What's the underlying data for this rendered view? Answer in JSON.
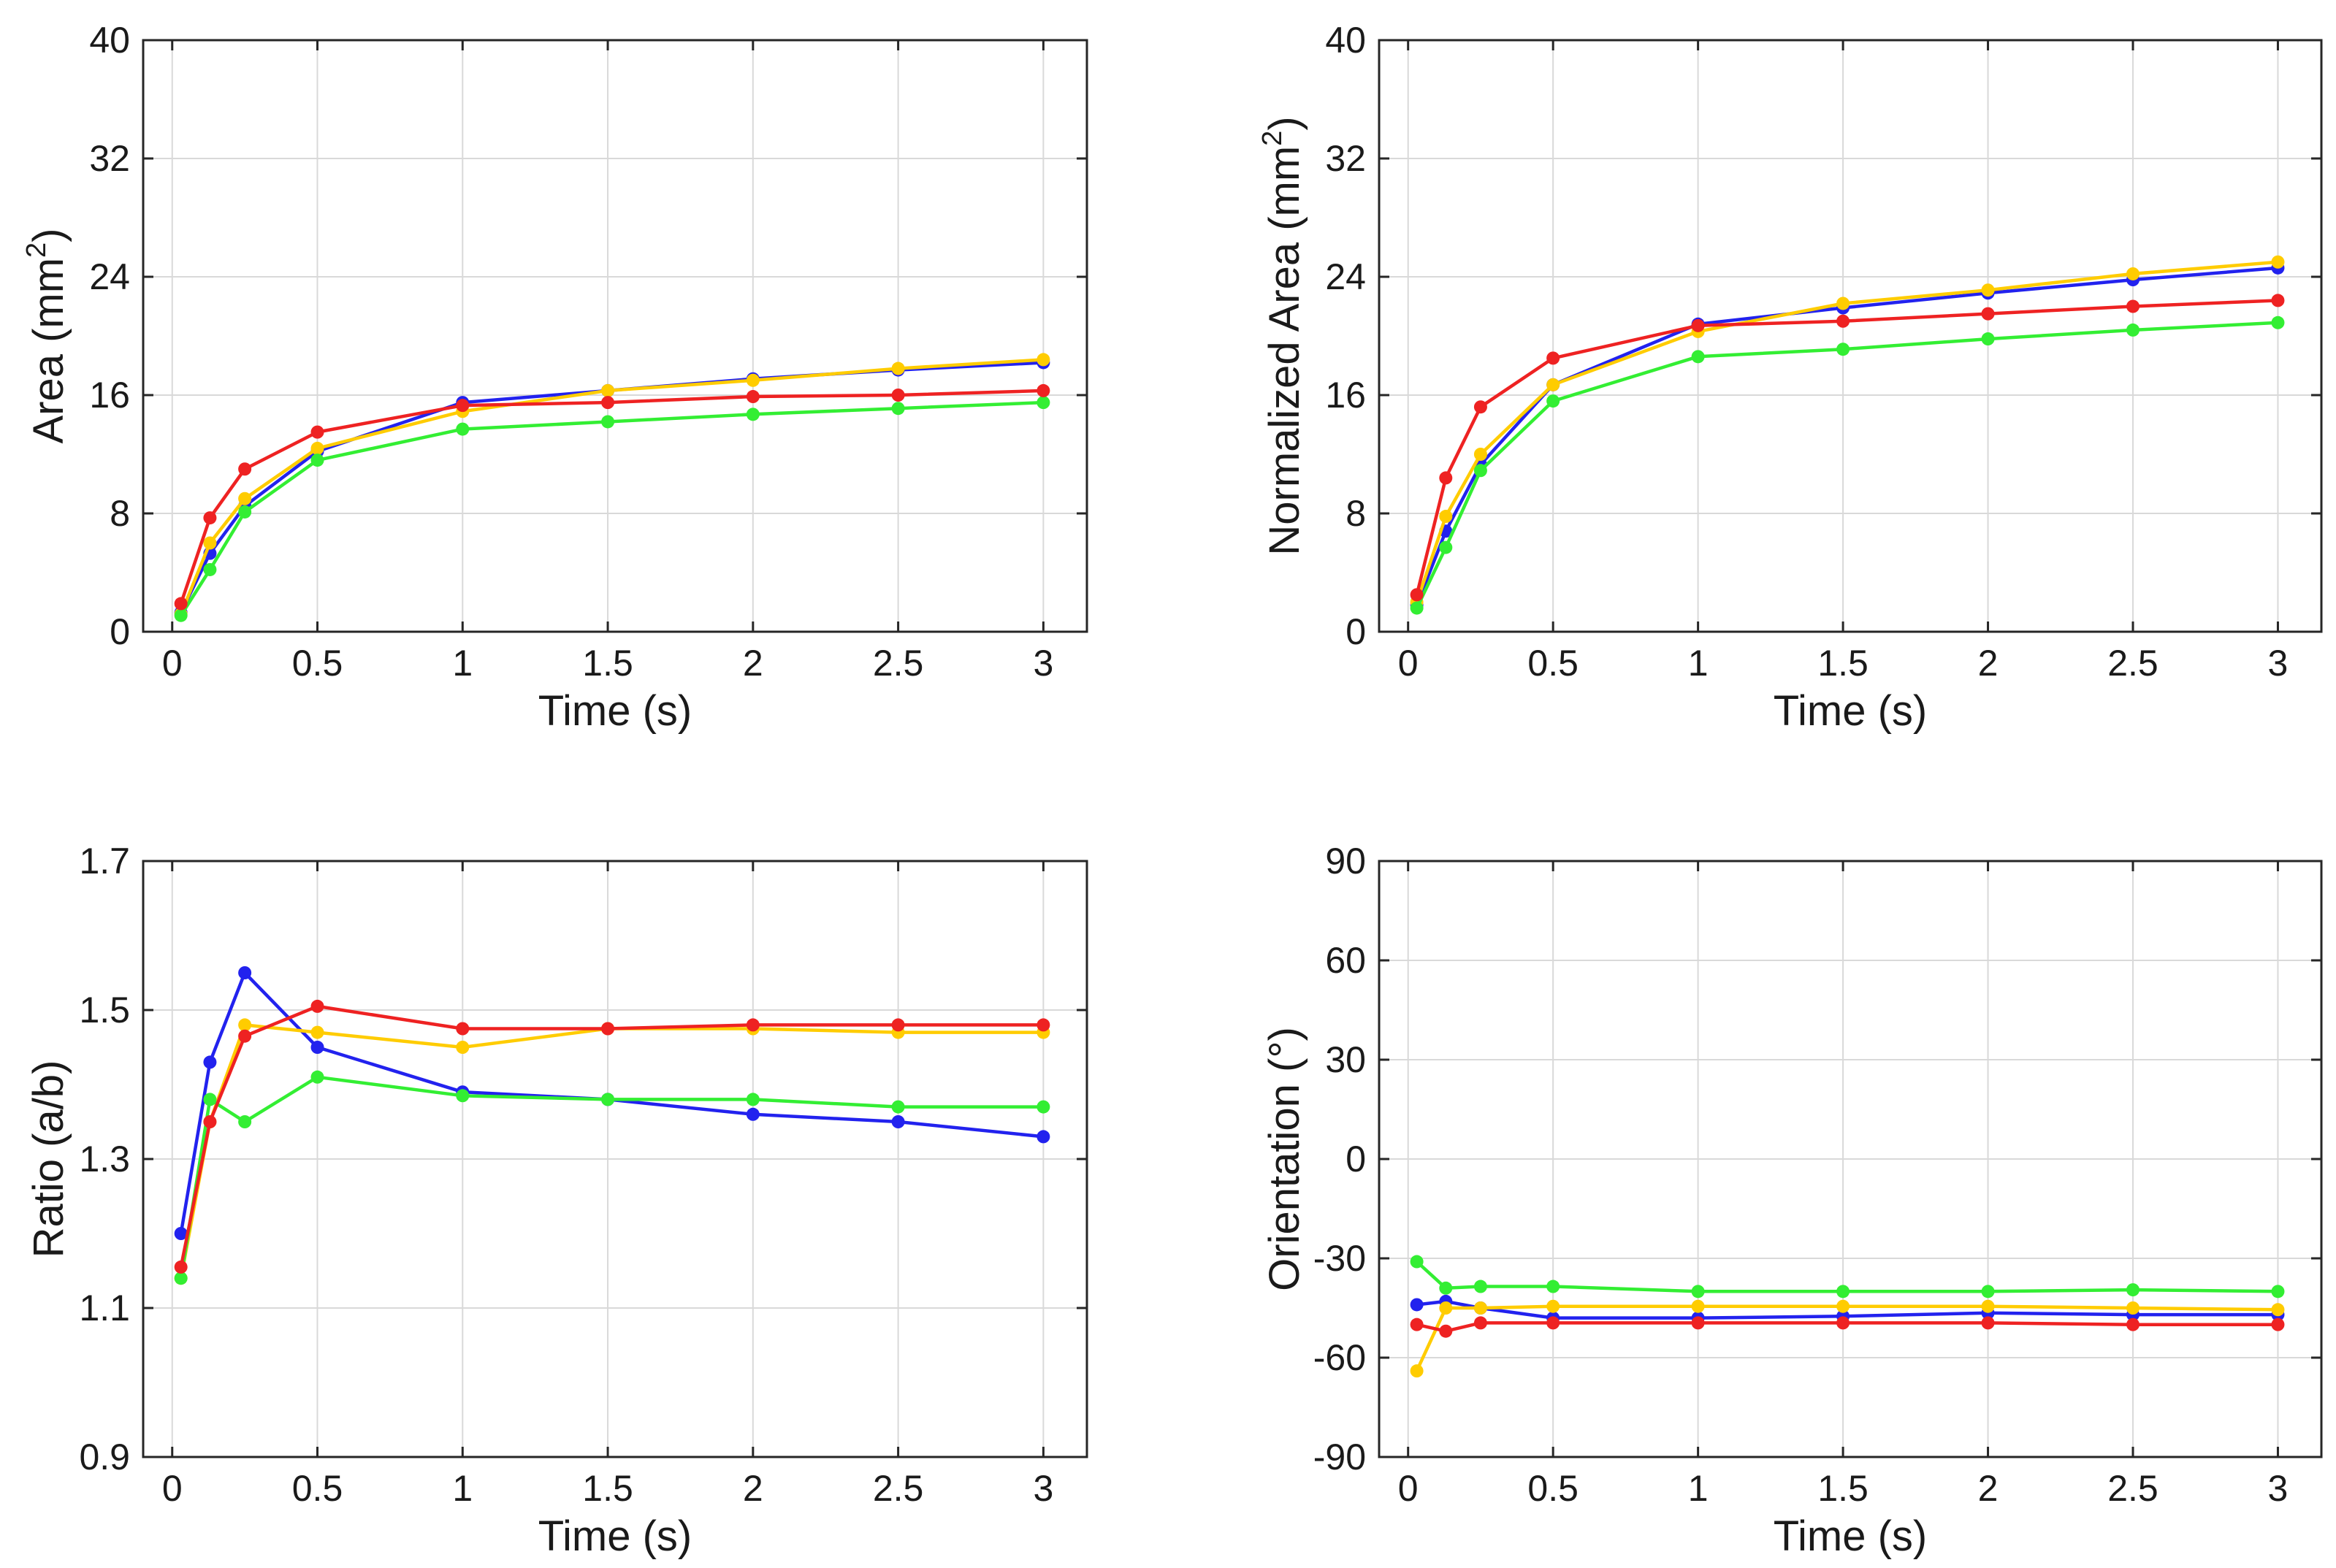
{
  "chart_data": [
    {
      "type": "line",
      "xlabel": "Time (s)",
      "ylabel": "Area (mm²)",
      "ylabel_main": "Area (mm",
      "ylabel_sup": "2",
      "ylabel_end": ")",
      "xlim": [
        -0.1,
        3.15
      ],
      "ylim": [
        0,
        40
      ],
      "xticks": [
        0,
        0.5,
        1,
        1.5,
        2,
        2.5,
        3
      ],
      "xtick_labels": [
        "0",
        "0.5",
        "1",
        "1.5",
        "2",
        "2.5",
        "3"
      ],
      "yticks": [
        0,
        8,
        16,
        24,
        32,
        40
      ],
      "ytick_labels": [
        "0",
        "8",
        "16",
        "24",
        "32",
        "40"
      ],
      "grid": true,
      "x": [
        0.03,
        0.13,
        0.25,
        0.5,
        1,
        1.5,
        2,
        2.5,
        3
      ],
      "series": [
        {
          "color": "#2222ee",
          "values": [
            1.3,
            5.3,
            8.5,
            12.2,
            15.5,
            16.3,
            17.1,
            17.7,
            18.2
          ]
        },
        {
          "color": "#ffcc00",
          "values": [
            1.2,
            6.0,
            9.0,
            12.4,
            14.9,
            16.3,
            17.0,
            17.8,
            18.4
          ]
        },
        {
          "color": "#33ee33",
          "values": [
            1.1,
            4.2,
            8.1,
            11.6,
            13.7,
            14.2,
            14.7,
            15.1,
            15.5
          ]
        },
        {
          "color": "#ee2222",
          "values": [
            1.9,
            7.7,
            11.0,
            13.5,
            15.3,
            15.5,
            15.9,
            16.0,
            16.3
          ]
        }
      ]
    },
    {
      "type": "line",
      "xlabel": "Time (s)",
      "ylabel": "Normalized Area (mm²)",
      "ylabel_main": "Normalized Area (mm",
      "ylabel_sup": "2",
      "ylabel_end": ")",
      "xlim": [
        -0.1,
        3.15
      ],
      "ylim": [
        0,
        40
      ],
      "xticks": [
        0,
        0.5,
        1,
        1.5,
        2,
        2.5,
        3
      ],
      "xtick_labels": [
        "0",
        "0.5",
        "1",
        "1.5",
        "2",
        "2.5",
        "3"
      ],
      "yticks": [
        0,
        8,
        16,
        24,
        32,
        40
      ],
      "ytick_labels": [
        "0",
        "8",
        "16",
        "24",
        "32",
        "40"
      ],
      "grid": true,
      "x": [
        0.03,
        0.13,
        0.25,
        0.5,
        1,
        1.5,
        2,
        2.5,
        3
      ],
      "series": [
        {
          "color": "#2222ee",
          "values": [
            1.8,
            6.8,
            11.3,
            16.7,
            20.8,
            21.9,
            22.9,
            23.8,
            24.6
          ]
        },
        {
          "color": "#ffcc00",
          "values": [
            2.0,
            7.8,
            12.0,
            16.7,
            20.3,
            22.2,
            23.1,
            24.2,
            25.0
          ]
        },
        {
          "color": "#33ee33",
          "values": [
            1.6,
            5.7,
            10.9,
            15.6,
            18.6,
            19.1,
            19.8,
            20.4,
            20.9
          ]
        },
        {
          "color": "#ee2222",
          "values": [
            2.5,
            10.4,
            15.2,
            18.5,
            20.7,
            21.0,
            21.5,
            22.0,
            22.4
          ]
        }
      ]
    },
    {
      "type": "line",
      "xlabel": "Time (s)",
      "ylabel": "Ratio (a/b)",
      "xlim": [
        -0.1,
        3.15
      ],
      "ylim": [
        0.9,
        1.7
      ],
      "xticks": [
        0,
        0.5,
        1,
        1.5,
        2,
        2.5,
        3
      ],
      "xtick_labels": [
        "0",
        "0.5",
        "1",
        "1.5",
        "2",
        "2.5",
        "3"
      ],
      "yticks": [
        0.9,
        1.1,
        1.3,
        1.5,
        1.7
      ],
      "ytick_labels": [
        "0.9",
        "1.1",
        "1.3",
        "1.5",
        "1.7"
      ],
      "grid": true,
      "x": [
        0.03,
        0.13,
        0.25,
        0.5,
        1,
        1.5,
        2,
        2.5,
        3
      ],
      "series": [
        {
          "color": "#2222ee",
          "values": [
            1.2,
            1.43,
            1.55,
            1.45,
            1.39,
            1.38,
            1.36,
            1.35,
            1.33
          ]
        },
        {
          "color": "#ffcc00",
          "values": [
            1.14,
            1.35,
            1.48,
            1.47,
            1.45,
            1.475,
            1.475,
            1.47,
            1.47
          ]
        },
        {
          "color": "#33ee33",
          "values": [
            1.14,
            1.38,
            1.35,
            1.41,
            1.385,
            1.38,
            1.38,
            1.37,
            1.37
          ]
        },
        {
          "color": "#ee2222",
          "values": [
            1.155,
            1.35,
            1.465,
            1.505,
            1.475,
            1.475,
            1.48,
            1.48,
            1.48
          ]
        }
      ]
    },
    {
      "type": "line",
      "xlabel": "Time (s)",
      "ylabel": "Orientation (°)",
      "xlim": [
        -0.1,
        3.15
      ],
      "ylim": [
        -90,
        90
      ],
      "xticks": [
        0,
        0.5,
        1,
        1.5,
        2,
        2.5,
        3
      ],
      "xtick_labels": [
        "0",
        "0.5",
        "1",
        "1.5",
        "2",
        "2.5",
        "3"
      ],
      "yticks": [
        -90,
        -60,
        -30,
        0,
        30,
        60,
        90
      ],
      "ytick_labels": [
        "-90",
        "-60",
        "-30",
        "0",
        "30",
        "60",
        "90"
      ],
      "grid": true,
      "x": [
        0.03,
        0.13,
        0.25,
        0.5,
        1,
        1.5,
        2,
        2.5,
        3
      ],
      "series": [
        {
          "color": "#2222ee",
          "values": [
            -44,
            -43,
            -45,
            -48,
            -48,
            -47.5,
            -46.5,
            -47,
            -47
          ]
        },
        {
          "color": "#ffcc00",
          "values": [
            -64,
            -45,
            -45,
            -44.5,
            -44.5,
            -44.5,
            -44.5,
            -45,
            -45.5
          ]
        },
        {
          "color": "#33ee33",
          "values": [
            -31,
            -39,
            -38.5,
            -38.5,
            -40,
            -40,
            -40,
            -39.5,
            -40
          ]
        },
        {
          "color": "#ee2222",
          "values": [
            -50,
            -52,
            -49.5,
            -49.5,
            -49.5,
            -49.5,
            -49.5,
            -50,
            -50
          ]
        }
      ]
    }
  ]
}
